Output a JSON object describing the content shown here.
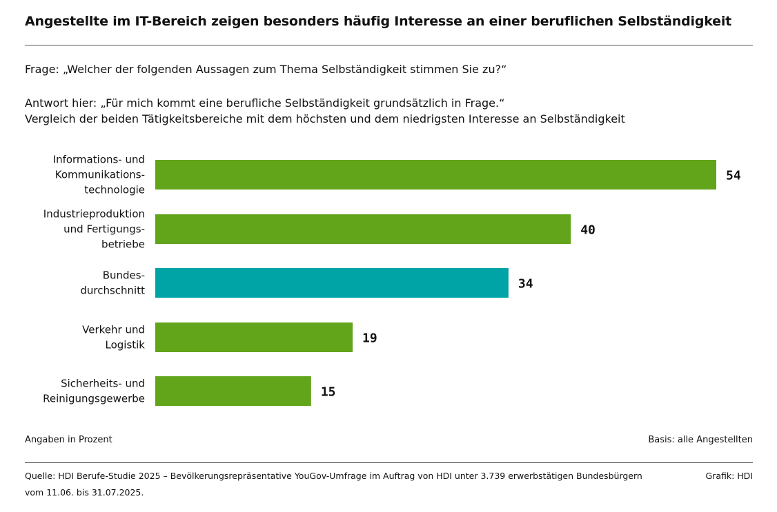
{
  "header": {
    "title": "Angestellte im IT-Bereich zeigen besonders häufig Interesse an einer beruflichen Selbständigkeit",
    "question": "Frage: „Welcher der folgenden Aussagen zum Thema Selbständigkeit stimmen Sie zu?“",
    "answer": "Antwort hier: „Für mich kommt eine berufliche Selbständigkeit grundsätzlich in Frage.“",
    "comparison": "Vergleich der beiden Tätigkeitsbereiche mit dem höchsten und dem niedrigsten Interesse an Selbständigkeit"
  },
  "chart_data": {
    "type": "bar",
    "orientation": "horizontal",
    "title": "Angestellte im IT-Bereich zeigen besonders häufig Interesse an einer beruflichen Selbständigkeit",
    "categories": [
      [
        "Informations- und",
        "Kommunikations-",
        "technologie"
      ],
      [
        "Industrieproduktion",
        "und Fertigungs-",
        "betriebe"
      ],
      [
        "Bundes-",
        "durchschnitt"
      ],
      [
        "Verkehr und",
        "Logistik"
      ],
      [
        "Sicherheits- und",
        "Reinigungsgewerbe"
      ]
    ],
    "values": [
      54,
      40,
      34,
      19,
      15
    ],
    "colors": [
      "#62a41a",
      "#62a41a",
      "#00a4a6",
      "#62a41a",
      "#62a41a"
    ],
    "unit": "Prozent",
    "xlim": [
      0,
      54
    ]
  },
  "footer": {
    "unit_note": "Angaben in Prozent",
    "basis_note": "Basis: alle Angestellten",
    "source_line1": "Quelle: HDI Berufe-Studie 2025 – Bevölkerungsrepräsentative YouGov-Umfrage im Auftrag von HDI unter 3.739 erwerbstätigen Bundesbürgern",
    "source_line2": "vom 11.06. bis 31.07.2025.",
    "credit": "Grafik: HDI"
  }
}
